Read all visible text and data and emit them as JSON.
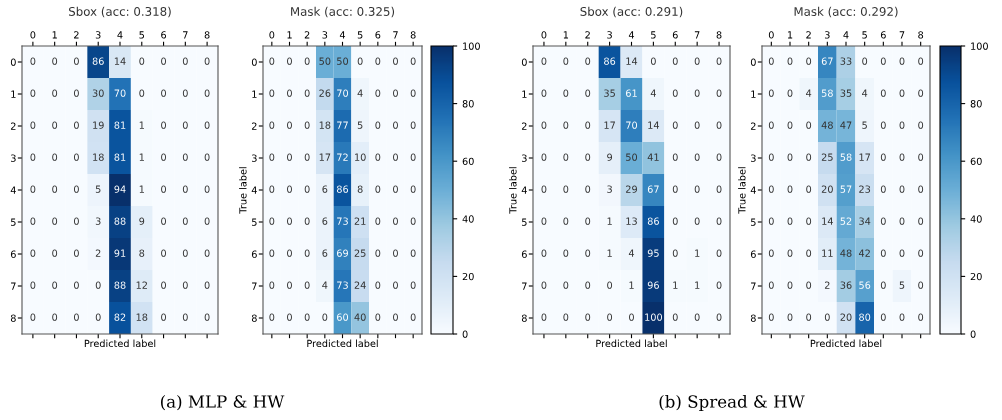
{
  "chart_data": [
    {
      "type": "heatmap",
      "title": "Sbox (acc: 0.318)",
      "xlabel": "Predicted label",
      "categories": [
        "0",
        "1",
        "2",
        "3",
        "4",
        "5",
        "6",
        "7",
        "8"
      ],
      "y_categories": [
        "0",
        "1",
        "2",
        "3",
        "4",
        "5",
        "6",
        "7",
        "8"
      ],
      "cells": [
        [
          0,
          0,
          0,
          86,
          14,
          0,
          0,
          0,
          0
        ],
        [
          0,
          0,
          0,
          30,
          70,
          0,
          0,
          0,
          0
        ],
        [
          0,
          0,
          0,
          19,
          81,
          1,
          0,
          0,
          0
        ],
        [
          0,
          0,
          0,
          18,
          81,
          1,
          0,
          0,
          0
        ],
        [
          0,
          0,
          0,
          5,
          94,
          1,
          0,
          0,
          0
        ],
        [
          0,
          0,
          0,
          3,
          88,
          9,
          0,
          0,
          0
        ],
        [
          0,
          0,
          0,
          2,
          91,
          8,
          0,
          0,
          0
        ],
        [
          0,
          0,
          0,
          0,
          88,
          12,
          0,
          0,
          0
        ],
        [
          0,
          0,
          0,
          0,
          82,
          18,
          0,
          0,
          0
        ]
      ],
      "data_labels": true,
      "annotations": [
        "(a) MLP & HW"
      ]
    },
    {
      "type": "heatmap",
      "title": "Mask (acc: 0.325)",
      "xlabel": "Predicted label",
      "ylabel": "True label",
      "categories": [
        "0",
        "1",
        "2",
        "3",
        "4",
        "5",
        "6",
        "7",
        "8"
      ],
      "y_categories": [
        "0",
        "1",
        "2",
        "3",
        "4",
        "5",
        "6",
        "7",
        "8"
      ],
      "cells": [
        [
          0,
          0,
          0,
          50,
          50,
          0,
          0,
          0,
          0
        ],
        [
          0,
          0,
          0,
          26,
          70,
          4,
          0,
          0,
          0
        ],
        [
          0,
          0,
          0,
          18,
          77,
          5,
          0,
          0,
          0
        ],
        [
          0,
          0,
          0,
          17,
          72,
          10,
          0,
          0,
          0
        ],
        [
          0,
          0,
          0,
          6,
          86,
          8,
          0,
          0,
          0
        ],
        [
          0,
          0,
          0,
          6,
          73,
          21,
          0,
          0,
          0
        ],
        [
          0,
          0,
          0,
          6,
          69,
          25,
          0,
          0,
          0
        ],
        [
          0,
          0,
          0,
          4,
          73,
          24,
          0,
          0,
          0
        ],
        [
          0,
          0,
          0,
          0,
          60,
          40,
          0,
          0,
          0
        ]
      ],
      "data_labels": true,
      "clim": [
        0,
        100
      ],
      "cticks": [
        0,
        20,
        40,
        60,
        80,
        100
      ]
    },
    {
      "type": "heatmap",
      "title": "Sbox (acc: 0.291)",
      "xlabel": "Predicted label",
      "ylabel": "True label",
      "categories": [
        "0",
        "1",
        "2",
        "3",
        "4",
        "5",
        "6",
        "7",
        "8"
      ],
      "y_categories": [
        "0",
        "1",
        "2",
        "3",
        "4",
        "5",
        "6",
        "7",
        "8"
      ],
      "cells": [
        [
          0,
          0,
          0,
          86,
          14,
          0,
          0,
          0,
          0
        ],
        [
          0,
          0,
          0,
          35,
          61,
          4,
          0,
          0,
          0
        ],
        [
          0,
          0,
          0,
          17,
          70,
          14,
          0,
          0,
          0
        ],
        [
          0,
          0,
          0,
          9,
          50,
          41,
          0,
          0,
          0
        ],
        [
          0,
          0,
          0,
          3,
          29,
          67,
          0,
          0,
          0
        ],
        [
          0,
          0,
          0,
          1,
          13,
          86,
          0,
          0,
          0
        ],
        [
          0,
          0,
          0,
          1,
          4,
          95,
          0,
          1,
          0
        ],
        [
          0,
          0,
          0,
          0,
          1,
          96,
          1,
          1,
          0
        ],
        [
          0,
          0,
          0,
          0,
          0,
          100,
          0,
          0,
          0
        ]
      ],
      "data_labels": true,
      "annotations": [
        "(b) Spread & HW"
      ]
    },
    {
      "type": "heatmap",
      "title": "Mask (acc: 0.292)",
      "xlabel": "Predicted label",
      "ylabel": "True label",
      "categories": [
        "0",
        "1",
        "2",
        "3",
        "4",
        "5",
        "6",
        "7",
        "8"
      ],
      "y_categories": [
        "0",
        "1",
        "2",
        "3",
        "4",
        "5",
        "6",
        "7",
        "8"
      ],
      "cells": [
        [
          0,
          0,
          0,
          67,
          33,
          0,
          0,
          0,
          0
        ],
        [
          0,
          0,
          4,
          58,
          35,
          4,
          0,
          0,
          0
        ],
        [
          0,
          0,
          0,
          48,
          47,
          5,
          0,
          0,
          0
        ],
        [
          0,
          0,
          0,
          25,
          58,
          17,
          0,
          0,
          0
        ],
        [
          0,
          0,
          0,
          20,
          57,
          23,
          0,
          0,
          0
        ],
        [
          0,
          0,
          0,
          14,
          52,
          34,
          0,
          0,
          0
        ],
        [
          0,
          0,
          0,
          11,
          48,
          42,
          0,
          0,
          0
        ],
        [
          0,
          0,
          0,
          2,
          36,
          56,
          0,
          5,
          0
        ],
        [
          0,
          0,
          0,
          0,
          20,
          80,
          0,
          0,
          0
        ]
      ],
      "data_labels": true,
      "clim": [
        0,
        100
      ],
      "cticks": [
        0,
        20,
        40,
        60,
        80,
        100
      ]
    }
  ]
}
